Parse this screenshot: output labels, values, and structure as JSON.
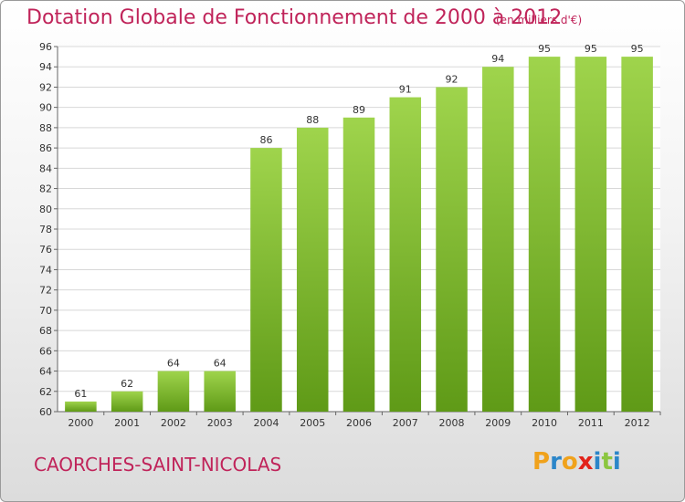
{
  "chart_data": {
    "type": "bar",
    "title": "Dotation Globale de Fonctionnement de 2000 à 2012",
    "unit_note": "(en milliers d'€)",
    "categories": [
      "2000",
      "2001",
      "2002",
      "2003",
      "2004",
      "2005",
      "2006",
      "2007",
      "2008",
      "2009",
      "2010",
      "2011",
      "2012"
    ],
    "values": [
      61,
      62,
      64,
      64,
      86,
      88,
      89,
      91,
      92,
      94,
      95,
      95,
      95
    ],
    "ylim": [
      60,
      96
    ],
    "ytick_step": 2,
    "xlabel": "",
    "ylabel": "",
    "grid": true,
    "colors": {
      "bar_top": "#9fd44c",
      "bar_bottom": "#5f9a17",
      "title": "#c0245a",
      "grid": "#d8d8d8"
    }
  },
  "footer": {
    "city": "CAORCHES-SAINT-NICOLAS",
    "logo": {
      "letters": [
        "P",
        "r",
        "o",
        "x",
        "i",
        "t",
        "i"
      ],
      "colors": [
        "#f0a21c",
        "#2b86c9",
        "#f0a21c",
        "#e2231a",
        "#2b86c9",
        "#8cc63f",
        "#2b86c9"
      ]
    }
  }
}
